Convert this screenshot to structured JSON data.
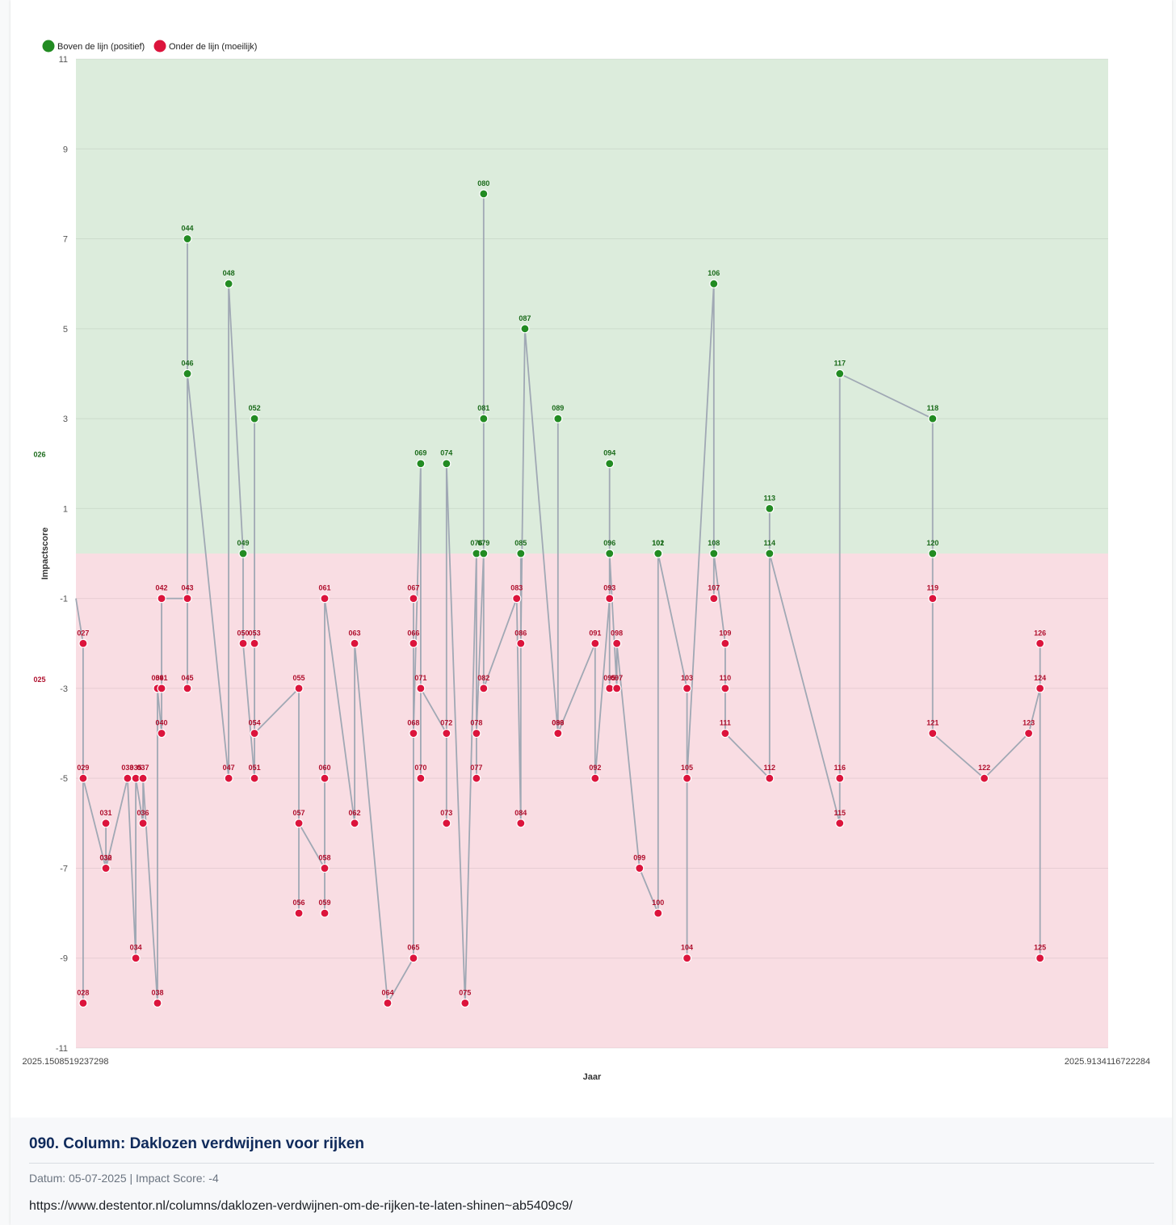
{
  "chart_data": {
    "type": "line",
    "ylabel": "Impactscore",
    "xlabel": "Jaar",
    "ylim": [
      -11,
      11
    ],
    "xlim": [
      "2025.1508519237298",
      "2025.9134116722284"
    ],
    "yticks": [
      11,
      9,
      7,
      5,
      3,
      1,
      -1,
      -3,
      -5,
      -7,
      -9,
      -11
    ],
    "bands": [
      {
        "name": "positive",
        "from": 0,
        "to": 11,
        "color": "#dcecdc"
      },
      {
        "name": "negative",
        "from": -11,
        "to": 0,
        "color": "#f9dde3"
      }
    ],
    "legend": [
      {
        "label": "Boven de lijn (positief)",
        "color": "#228b22"
      },
      {
        "label": "Onder de lijn (moeilijk)",
        "color": "#dc143c"
      }
    ],
    "legend_position": "top-left",
    "colors": {
      "positive": "#228b22",
      "negative": "#dc143c",
      "line": "#a0a8b4",
      "positive_label": "#1b6b1b",
      "negative_label": "#b0102e"
    },
    "offscreen_labels": [
      {
        "label": "026",
        "y": 2.2
      },
      {
        "label": "025",
        "y": -2.8
      }
    ],
    "points": [
      {
        "id": "027",
        "x": 0.007,
        "y": -2
      },
      {
        "id": "028",
        "x": 0.007,
        "y": -10
      },
      {
        "id": "029",
        "x": 0.007,
        "y": -5
      },
      {
        "id": "030",
        "x": 0.029,
        "y": -7
      },
      {
        "id": "031",
        "x": 0.029,
        "y": -6
      },
      {
        "id": "032",
        "x": 0.029,
        "y": -7
      },
      {
        "id": "033",
        "x": 0.05,
        "y": -5
      },
      {
        "id": "034",
        "x": 0.058,
        "y": -9
      },
      {
        "id": "035",
        "x": 0.058,
        "y": -5
      },
      {
        "id": "036",
        "x": 0.065,
        "y": -6
      },
      {
        "id": "037",
        "x": 0.065,
        "y": -5
      },
      {
        "id": "038",
        "x": 0.079,
        "y": -10
      },
      {
        "id": "039",
        "x": 0.079,
        "y": -3
      },
      {
        "id": "040",
        "x": 0.083,
        "y": -4
      },
      {
        "id": "041",
        "x": 0.083,
        "y": -3
      },
      {
        "id": "042",
        "x": 0.083,
        "y": -1
      },
      {
        "id": "043",
        "x": 0.108,
        "y": -1
      },
      {
        "id": "045",
        "x": 0.108,
        "y": -3
      },
      {
        "id": "044",
        "x": 0.108,
        "y": 7
      },
      {
        "id": "046",
        "x": 0.108,
        "y": 4
      },
      {
        "id": "047",
        "x": 0.148,
        "y": -5
      },
      {
        "id": "048",
        "x": 0.148,
        "y": 6
      },
      {
        "id": "049",
        "x": 0.162,
        "y": 0
      },
      {
        "id": "050",
        "x": 0.162,
        "y": -2
      },
      {
        "id": "051",
        "x": 0.173,
        "y": -5
      },
      {
        "id": "052",
        "x": 0.173,
        "y": 3
      },
      {
        "id": "053",
        "x": 0.173,
        "y": -2
      },
      {
        "id": "054",
        "x": 0.173,
        "y": -4
      },
      {
        "id": "055",
        "x": 0.216,
        "y": -3
      },
      {
        "id": "056",
        "x": 0.216,
        "y": -8
      },
      {
        "id": "057",
        "x": 0.216,
        "y": -6
      },
      {
        "id": "058",
        "x": 0.241,
        "y": -7
      },
      {
        "id": "059",
        "x": 0.241,
        "y": -8
      },
      {
        "id": "060",
        "x": 0.241,
        "y": -5
      },
      {
        "id": "061",
        "x": 0.241,
        "y": -1
      },
      {
        "id": "062",
        "x": 0.27,
        "y": -6
      },
      {
        "id": "063",
        "x": 0.27,
        "y": -2
      },
      {
        "id": "064",
        "x": 0.302,
        "y": -10
      },
      {
        "id": "065",
        "x": 0.327,
        "y": -9
      },
      {
        "id": "066",
        "x": 0.327,
        "y": -2
      },
      {
        "id": "067",
        "x": 0.327,
        "y": -1
      },
      {
        "id": "068",
        "x": 0.327,
        "y": -4
      },
      {
        "id": "069",
        "x": 0.334,
        "y": 2
      },
      {
        "id": "070",
        "x": 0.334,
        "y": -5
      },
      {
        "id": "071",
        "x": 0.334,
        "y": -3
      },
      {
        "id": "072",
        "x": 0.359,
        "y": -4
      },
      {
        "id": "073",
        "x": 0.359,
        "y": -6
      },
      {
        "id": "074",
        "x": 0.359,
        "y": 2
      },
      {
        "id": "075",
        "x": 0.377,
        "y": -10
      },
      {
        "id": "076",
        "x": 0.388,
        "y": 0
      },
      {
        "id": "077",
        "x": 0.388,
        "y": -5
      },
      {
        "id": "078",
        "x": 0.388,
        "y": -4
      },
      {
        "id": "079",
        "x": 0.395,
        "y": 0
      },
      {
        "id": "080",
        "x": 0.395,
        "y": 8
      },
      {
        "id": "081",
        "x": 0.395,
        "y": 3
      },
      {
        "id": "082",
        "x": 0.395,
        "y": -3
      },
      {
        "id": "083",
        "x": 0.427,
        "y": -1
      },
      {
        "id": "084",
        "x": 0.431,
        "y": -6
      },
      {
        "id": "085",
        "x": 0.431,
        "y": 0
      },
      {
        "id": "086",
        "x": 0.431,
        "y": -2
      },
      {
        "id": "087",
        "x": 0.435,
        "y": 5
      },
      {
        "id": "088",
        "x": 0.467,
        "y": -4
      },
      {
        "id": "089",
        "x": 0.467,
        "y": 3
      },
      {
        "id": "090",
        "x": 0.467,
        "y": -4
      },
      {
        "id": "091",
        "x": 0.503,
        "y": -2
      },
      {
        "id": "092",
        "x": 0.503,
        "y": -5
      },
      {
        "id": "093",
        "x": 0.517,
        "y": -1
      },
      {
        "id": "094",
        "x": 0.517,
        "y": 2
      },
      {
        "id": "095",
        "x": 0.517,
        "y": -3
      },
      {
        "id": "096",
        "x": 0.517,
        "y": 0
      },
      {
        "id": "097",
        "x": 0.524,
        "y": -3
      },
      {
        "id": "098",
        "x": 0.524,
        "y": -2
      },
      {
        "id": "099",
        "x": 0.546,
        "y": -7
      },
      {
        "id": "100",
        "x": 0.564,
        "y": -8
      },
      {
        "id": "101",
        "x": 0.564,
        "y": 0
      },
      {
        "id": "102",
        "x": 0.564,
        "y": 0
      },
      {
        "id": "103",
        "x": 0.592,
        "y": -3
      },
      {
        "id": "104",
        "x": 0.592,
        "y": -9
      },
      {
        "id": "105",
        "x": 0.592,
        "y": -5
      },
      {
        "id": "106",
        "x": 0.618,
        "y": 6
      },
      {
        "id": "107",
        "x": 0.618,
        "y": -1
      },
      {
        "id": "108",
        "x": 0.618,
        "y": 0
      },
      {
        "id": "109",
        "x": 0.629,
        "y": -2
      },
      {
        "id": "110",
        "x": 0.629,
        "y": -3
      },
      {
        "id": "111",
        "x": 0.629,
        "y": -4
      },
      {
        "id": "112",
        "x": 0.672,
        "y": -5
      },
      {
        "id": "113",
        "x": 0.672,
        "y": 1
      },
      {
        "id": "114",
        "x": 0.672,
        "y": 0
      },
      {
        "id": "115",
        "x": 0.74,
        "y": -6
      },
      {
        "id": "116",
        "x": 0.74,
        "y": -5
      },
      {
        "id": "117",
        "x": 0.74,
        "y": 4
      },
      {
        "id": "118",
        "x": 0.83,
        "y": 3
      },
      {
        "id": "119",
        "x": 0.83,
        "y": -1
      },
      {
        "id": "120",
        "x": 0.83,
        "y": 0
      },
      {
        "id": "121",
        "x": 0.83,
        "y": -4
      },
      {
        "id": "122",
        "x": 0.88,
        "y": -5
      },
      {
        "id": "123",
        "x": 0.923,
        "y": -4
      },
      {
        "id": "124",
        "x": 0.934,
        "y": -3
      },
      {
        "id": "125",
        "x": 0.934,
        "y": -9
      },
      {
        "id": "126",
        "x": 0.934,
        "y": -2
      }
    ],
    "path_order": [
      "027",
      "028",
      "029",
      "030",
      "031",
      "032",
      "033",
      "034",
      "035",
      "036",
      "037",
      "038",
      "039",
      "040",
      "041",
      "042",
      "043",
      "044",
      "045",
      "046",
      "047",
      "048",
      "049",
      "050",
      "051",
      "052",
      "053",
      "054",
      "055",
      "056",
      "057",
      "058",
      "059",
      "060",
      "061",
      "062",
      "063",
      "064",
      "065",
      "066",
      "067",
      "068",
      "069",
      "070",
      "071",
      "072",
      "073",
      "074",
      "075",
      "076",
      "077",
      "078",
      "079",
      "080",
      "081",
      "082",
      "083",
      "084",
      "085",
      "086",
      "087",
      "088",
      "089",
      "090",
      "091",
      "092",
      "093",
      "094",
      "095",
      "096",
      "097",
      "098",
      "099",
      "100",
      "101",
      "102",
      "103",
      "104",
      "105",
      "106",
      "107",
      "108",
      "109",
      "110",
      "111",
      "112",
      "113",
      "114",
      "115",
      "116",
      "117",
      "118",
      "119",
      "120",
      "121",
      "122",
      "123",
      "124",
      "125",
      "126"
    ]
  },
  "article": {
    "title": "090. Column: Daklozen verdwijnen voor rijken",
    "meta": "Datum: 05-07-2025 | Impact Score: -4",
    "url": "https://www.destentor.nl/columns/daklozen-verdwijnen-om-de-rijken-te-laten-shinen~ab5409c9/"
  }
}
